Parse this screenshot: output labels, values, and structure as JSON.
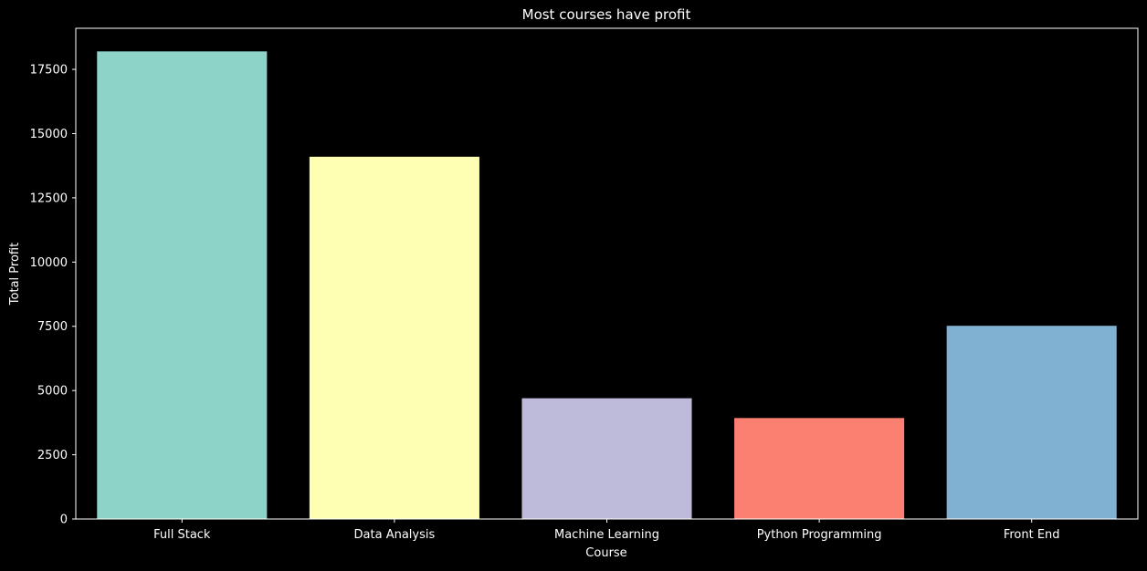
{
  "chart_data": {
    "type": "bar",
    "title": "Most courses have profit",
    "xlabel": "Course",
    "ylabel": "Total Profit",
    "categories": [
      "Full Stack",
      "Data Analysis",
      "Machine Learning",
      "Python Programming",
      "Front End"
    ],
    "values": [
      18200,
      14100,
      4700,
      3930,
      7520
    ],
    "colors": [
      "#8dd3c7",
      "#ffffb3",
      "#bebada",
      "#fb8072",
      "#80b1d3"
    ],
    "ylim": [
      0,
      19100
    ],
    "yticks": [
      0,
      2500,
      5000,
      7500,
      10000,
      12500,
      15000,
      17500
    ],
    "ytick_labels": [
      "0",
      "2500",
      "5000",
      "7500",
      "10000",
      "12500",
      "15000",
      "17500"
    ],
    "grid": false,
    "legend": "none",
    "background": "#000000",
    "foreground": "#ffffff"
  }
}
